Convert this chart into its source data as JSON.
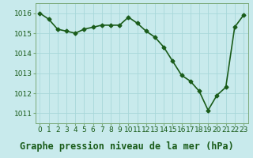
{
  "x": [
    0,
    1,
    2,
    3,
    4,
    5,
    6,
    7,
    8,
    9,
    10,
    11,
    12,
    13,
    14,
    15,
    16,
    17,
    18,
    19,
    20,
    21,
    22,
    23
  ],
  "y": [
    1016.0,
    1015.7,
    1015.2,
    1015.1,
    1015.0,
    1015.2,
    1015.3,
    1015.4,
    1015.4,
    1015.4,
    1015.8,
    1015.5,
    1015.1,
    1014.8,
    1014.3,
    1013.6,
    1012.9,
    1012.6,
    1012.1,
    1011.15,
    1011.9,
    1012.3,
    1015.3,
    1015.9
  ],
  "line_color": "#1a5c1a",
  "marker": "D",
  "marker_size": 2.5,
  "bg_color": "#c8eaec",
  "grid_color": "#a8d8da",
  "title": "Graphe pression niveau de la mer (hPa)",
  "ylim": [
    1010.5,
    1016.5
  ],
  "yticks": [
    1011,
    1012,
    1013,
    1014,
    1015,
    1016
  ],
  "xlim": [
    -0.5,
    23.5
  ],
  "xtick_labels": [
    "0",
    "1",
    "2",
    "3",
    "4",
    "5",
    "6",
    "7",
    "8",
    "9",
    "10",
    "11",
    "12",
    "13",
    "14",
    "15",
    "16",
    "17",
    "18",
    "19",
    "20",
    "21",
    "22",
    "23"
  ],
  "title_fontsize": 8.5,
  "tick_fontsize": 6.5,
  "linewidth": 1.2
}
